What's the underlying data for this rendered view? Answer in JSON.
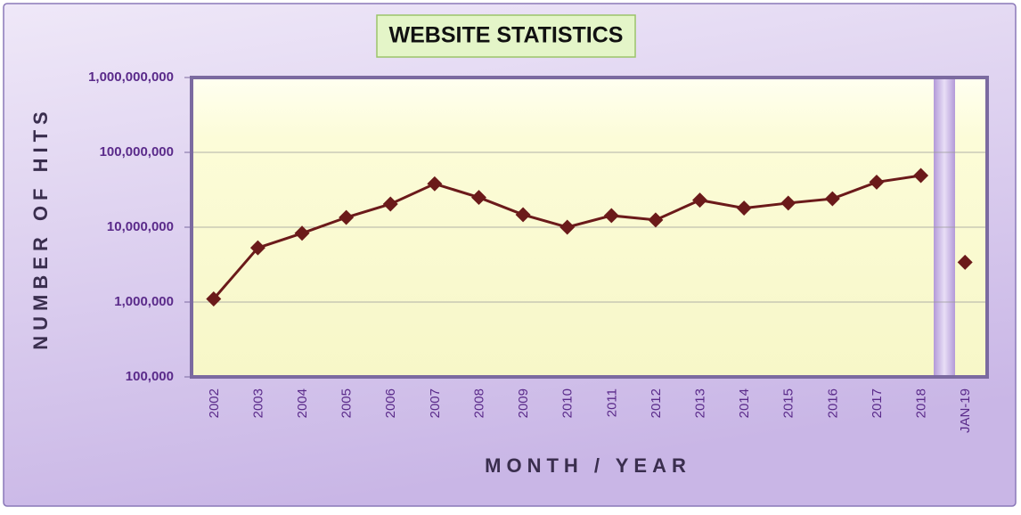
{
  "chart_data": {
    "type": "line",
    "title": "WEBSITE STATISTICS",
    "x_label": "MONTH / YEAR",
    "y_label": "NUMBER OF HITS",
    "categories": [
      "2002",
      "2003",
      "2004",
      "2005",
      "2006",
      "2007",
      "2008",
      "2009",
      "2010",
      "2011",
      "2012",
      "2013",
      "2014",
      "2015",
      "2016",
      "2017",
      "2018",
      "JAN-19"
    ],
    "series": [
      {
        "color": "#6b1a1a",
        "values": [
          1100000,
          5300000,
          8300000,
          13500000,
          20400000,
          38000000,
          25000000,
          14700000,
          10000000,
          14300000,
          12500000,
          23000000,
          18000000,
          21000000,
          24000000,
          40000000,
          49000000,
          null
        ]
      },
      {
        "color": "#6b1a1a",
        "values": [
          null,
          null,
          null,
          null,
          null,
          null,
          null,
          null,
          null,
          null,
          null,
          null,
          null,
          null,
          null,
          null,
          null,
          3400000
        ]
      }
    ],
    "log_scale": true,
    "grid": true,
    "ylim": [
      100000,
      1000000000
    ],
    "yticks": [
      {
        "value": 100000,
        "label": "100,000"
      },
      {
        "value": 1000000,
        "label": "1,000,000"
      },
      {
        "value": 10000000,
        "label": "10,000,000"
      },
      {
        "value": 100000000,
        "label": "100,000,000"
      },
      {
        "value": 1000000000,
        "label": "1,000,000,000"
      }
    ]
  }
}
